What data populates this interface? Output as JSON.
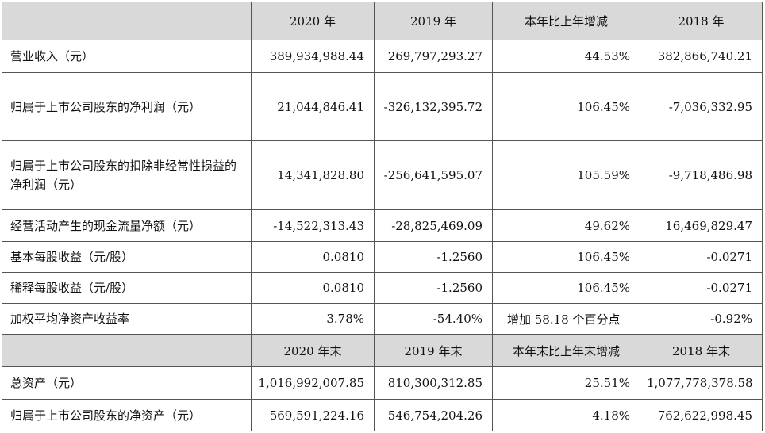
{
  "header1": [
    "2020 年",
    "2019 年",
    "本年比上年增减",
    "2018 年"
  ],
  "rows1": [
    {
      "label": "营业收入（元）",
      "v2020": "389,934,988.44",
      "v2019": "269,797,293.27",
      "change": "44.53%",
      "v2018": "382,866,740.21"
    },
    {
      "label": "归属于上市公司股东的净利润（元）",
      "v2020": "21,044,846.41",
      "v2019": "-326,132,395.72",
      "change": "106.45%",
      "v2018": "-7,036,332.95"
    },
    {
      "label": "归属于上市公司股东的扣除非经常性损益的净利润（元）",
      "v2020": "14,341,828.80",
      "v2019": "-256,641,595.07",
      "change": "105.59%",
      "v2018": "-9,718,486.98"
    },
    {
      "label": "经营活动产生的现金流量净额（元）",
      "v2020": "-14,522,313.43",
      "v2019": "-28,825,469.09",
      "change": "49.62%",
      "v2018": "16,469,829.47"
    },
    {
      "label": "基本每股收益（元/股）",
      "v2020": "0.0810",
      "v2019": "-1.2560",
      "change": "106.45%",
      "v2018": "-0.0271"
    },
    {
      "label": "稀释每股收益（元/股）",
      "v2020": "0.0810",
      "v2019": "-1.2560",
      "change": "106.45%",
      "v2018": "-0.0271"
    },
    {
      "label": "加权平均净资产收益率",
      "v2020": "3.78%",
      "v2019": "-54.40%",
      "change": "增加 58.18 个百分点",
      "v2018": "-0.92%"
    }
  ],
  "header2": [
    "2020 年末",
    "2019 年末",
    "本年末比上年末增减",
    "2018 年末"
  ],
  "rows2": [
    {
      "label": "总资产（元）",
      "v2020": "1,016,992,007.85",
      "v2019": "810,300,312.85",
      "change": "25.51%",
      "v2018": "1,077,778,378.58"
    },
    {
      "label": "归属于上市公司股东的净资产（元）",
      "v2020": "569,591,224.16",
      "v2019": "546,754,204.26",
      "change": "4.18%",
      "v2018": "762,622,998.45"
    }
  ]
}
